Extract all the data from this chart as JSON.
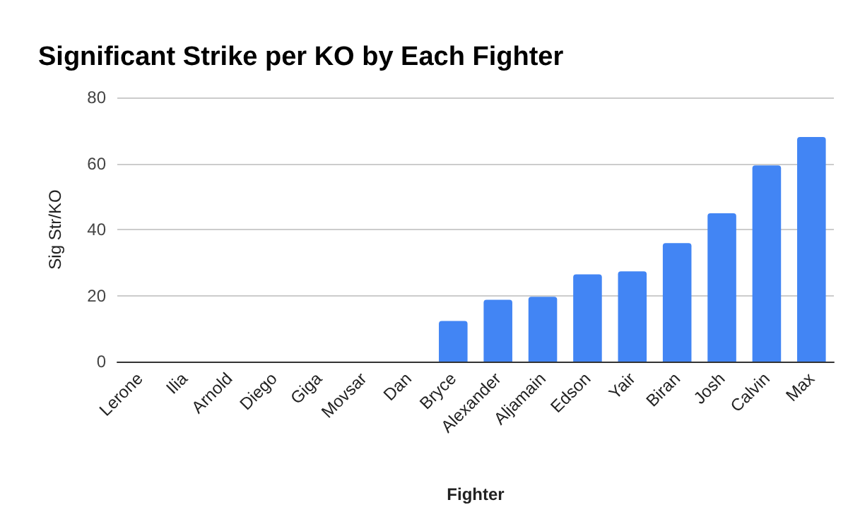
{
  "chart_data": {
    "type": "bar",
    "title": "Significant Strike per KO by Each Fighter",
    "xlabel": "Fighter",
    "ylabel": "Sig Str/KO",
    "categories": [
      "Lerone",
      "Ilia",
      "Arnold",
      "Diego",
      "Giga",
      "Movsar",
      "Dan",
      "Bryce",
      "Alexander",
      "Aljamain",
      "Edson",
      "Yair",
      "Biran",
      "Josh",
      "Calvin",
      "Max"
    ],
    "values": [
      0,
      0,
      0,
      0,
      0,
      0,
      0,
      12.3,
      18.7,
      19.6,
      26.4,
      27.3,
      35.9,
      44.9,
      59.4,
      68.0
    ],
    "color": "#4285f4",
    "ylim": [
      0,
      80
    ],
    "yticks": [
      0,
      20,
      40,
      60,
      80
    ],
    "grid": "y"
  }
}
